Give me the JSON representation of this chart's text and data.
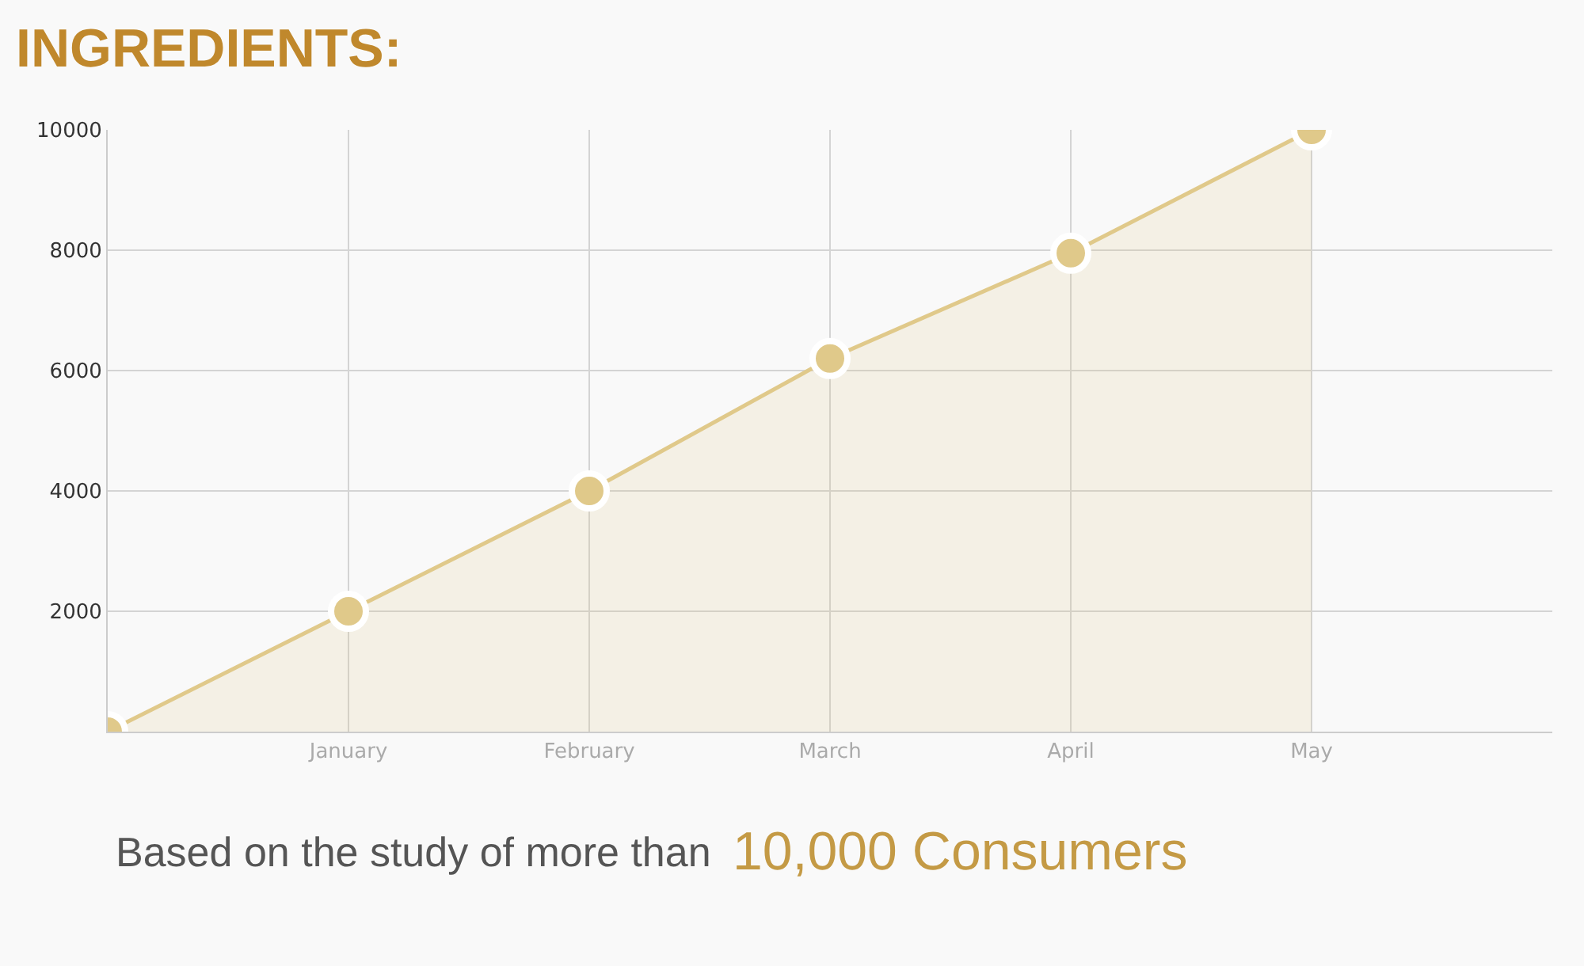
{
  "chart_data": {
    "type": "area",
    "title": "INGREDIENTS:",
    "categories": [
      null,
      "January",
      "February",
      "March",
      "April",
      "May",
      null
    ],
    "series": [
      {
        "color": "#e0c98a",
        "values": [
          0,
          2000,
          4000,
          6200,
          7950,
          10000,
          null
        ]
      }
    ],
    "ylim": [
      0,
      10000
    ],
    "yticks": [
      2000,
      4000,
      6000,
      8000,
      10000
    ],
    "grid": true,
    "legend": false,
    "marker": "circle",
    "line_style": "solid",
    "annotations": [
      "Based on the study of more than",
      "10,000 Consumers"
    ]
  }
}
